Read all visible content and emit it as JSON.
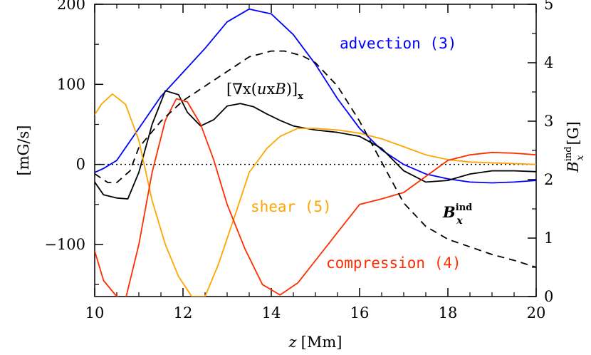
{
  "chart_data": {
    "type": "line",
    "x_label": {
      "var": "z",
      "unit": "[Mm]"
    },
    "y_label": "[mG/s]",
    "y2_label": {
      "base": "B",
      "sub": "x",
      "sup": "ind",
      "unit": "[G]"
    },
    "xlim": [
      10,
      20
    ],
    "ylim": [
      -165,
      200
    ],
    "y2lim": [
      0,
      5
    ],
    "x_ticks": [
      "10",
      "12",
      "14",
      "16",
      "18",
      "20"
    ],
    "y_ticks": [
      "200",
      "100",
      "0",
      "−100"
    ],
    "y2_ticks": [
      "0",
      "1",
      "2",
      "3",
      "4",
      "5"
    ],
    "zero_line": true,
    "series": [
      {
        "name": "advection (3)",
        "color": "#0000ff",
        "x": [
          10.0,
          10.2,
          10.5,
          11.0,
          11.5,
          12.0,
          12.5,
          13.0,
          13.5,
          14.0,
          14.5,
          15.0,
          15.5,
          16.0,
          16.5,
          17.0,
          17.5,
          18.0,
          18.5,
          19.0,
          19.5,
          20.0
        ],
        "y": [
          -10,
          -5,
          5,
          45,
          85,
          115,
          145,
          178,
          194,
          188,
          162,
          125,
          82,
          45,
          18,
          0,
          -12,
          -18,
          -22,
          -23,
          -22,
          -20
        ]
      },
      {
        "name": "∇x(uxB)",
        "color": "#000000",
        "x": [
          10.0,
          10.2,
          10.5,
          10.75,
          11.0,
          11.3,
          11.6,
          11.9,
          12.1,
          12.4,
          12.7,
          13.0,
          13.3,
          13.6,
          13.9,
          14.2,
          14.5,
          15.0,
          15.5,
          16.0,
          16.5,
          17.0,
          17.5,
          18.0,
          18.5,
          19.0,
          19.5,
          20.0
        ],
        "y": [
          -22,
          -38,
          -42,
          -43,
          -10,
          50,
          92,
          87,
          65,
          48,
          56,
          73,
          76,
          72,
          63,
          55,
          48,
          43,
          40,
          35,
          20,
          -8,
          -22,
          -20,
          -12,
          -8,
          -8,
          -9
        ]
      },
      {
        "name": "shear (5)",
        "color": "#ffa500",
        "x": [
          10.0,
          10.15,
          10.4,
          10.7,
          11.0,
          11.3,
          11.6,
          11.9,
          12.2,
          12.5,
          12.8,
          13.2,
          13.5,
          13.9,
          14.2,
          14.6,
          15.0,
          15.5,
          16.0,
          16.5,
          17.0,
          17.5,
          18.0,
          18.5,
          19.0,
          19.5,
          20.0
        ],
        "y": [
          62,
          75,
          88,
          75,
          30,
          -45,
          -100,
          -140,
          -165,
          -165,
          -125,
          -60,
          -10,
          20,
          35,
          45,
          45,
          43,
          39,
          32,
          22,
          12,
          6,
          3,
          2,
          1,
          0
        ]
      },
      {
        "name": "compression (4)",
        "color": "#ff2d00",
        "x": [
          10.0,
          10.2,
          10.5,
          10.7,
          11.0,
          11.3,
          11.6,
          11.85,
          12.1,
          12.4,
          12.7,
          13.0,
          13.4,
          13.8,
          14.2,
          14.6,
          15.0,
          15.5,
          16.0,
          16.5,
          17.0,
          17.5,
          18.0,
          18.5,
          19.0,
          19.5,
          20.0
        ],
        "y": [
          -108,
          -145,
          -165,
          -168,
          -100,
          -10,
          55,
          82,
          78,
          50,
          5,
          -50,
          -105,
          -150,
          -163,
          -148,
          -120,
          -85,
          -50,
          -43,
          -35,
          -15,
          5,
          12,
          15,
          14,
          12
        ]
      },
      {
        "name": "B_x^ind",
        "color": "#000000",
        "dashed": true,
        "axis": "right",
        "x": [
          10.0,
          10.3,
          10.5,
          10.8,
          11.0,
          11.5,
          12.0,
          12.5,
          13.0,
          13.5,
          14.0,
          14.3,
          14.7,
          15.0,
          15.5,
          16.0,
          16.5,
          17.0,
          17.5,
          18.0,
          18.5,
          19.0,
          19.5,
          20.0
        ],
        "y": [
          2.1,
          1.95,
          1.95,
          2.15,
          2.55,
          3.0,
          3.35,
          3.6,
          3.85,
          4.1,
          4.2,
          4.2,
          4.12,
          4.0,
          3.6,
          3.0,
          2.3,
          1.6,
          1.2,
          0.98,
          0.85,
          0.72,
          0.62,
          0.5
        ]
      }
    ]
  },
  "labels": {
    "advection": "advection (3)",
    "shear": "shear (5)",
    "compression": "compression (4)",
    "formula_open": "[",
    "formula_nabla": "∇",
    "formula_x1": "x(",
    "formula_u": "u",
    "formula_x2": "x",
    "formula_b": "B",
    "formula_close": ")]",
    "formula_sub": "x",
    "bind_base": "B",
    "bind_sup": "ind",
    "bind_sub": "x"
  }
}
